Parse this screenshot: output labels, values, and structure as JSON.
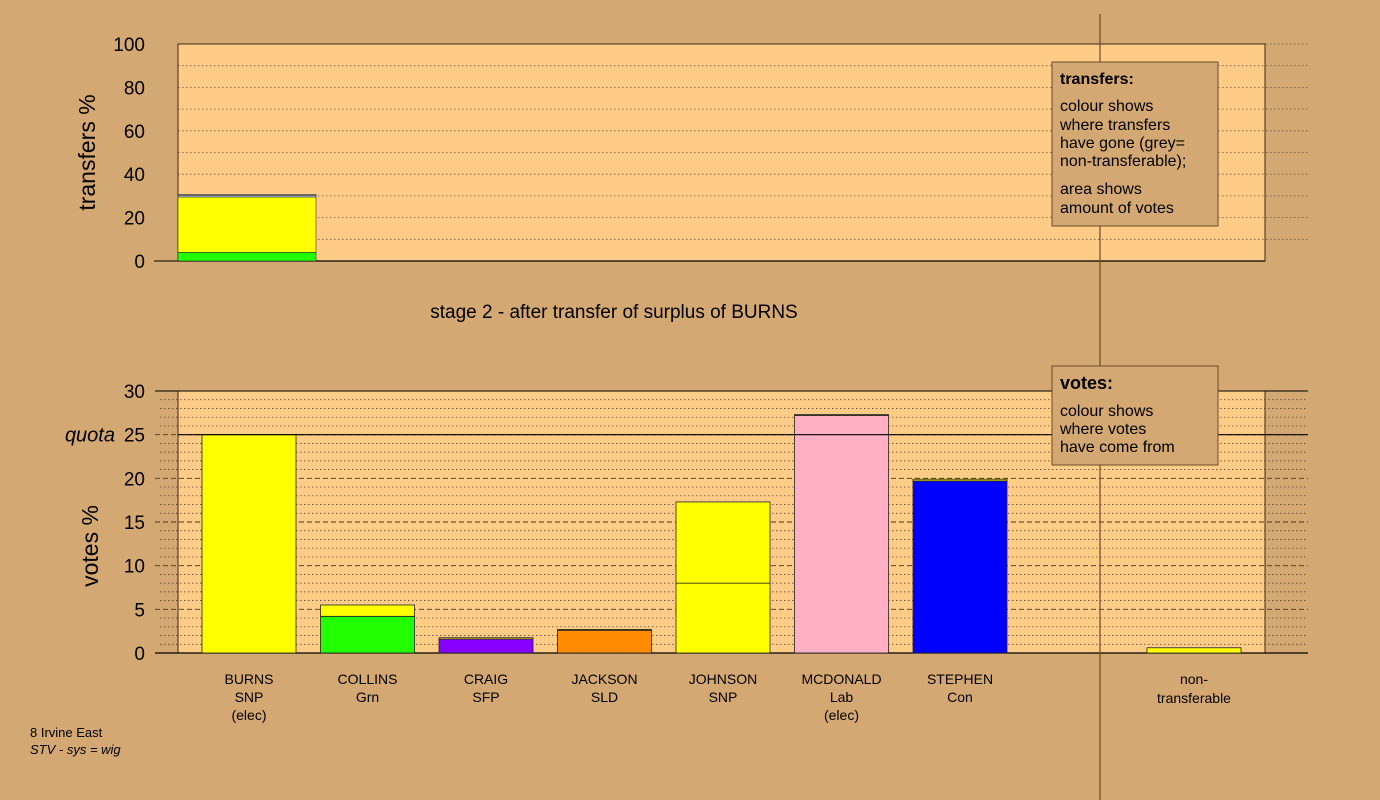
{
  "colors": {
    "page_bg": "#d4a872",
    "plot_bg": "#ffcc88",
    "yellow": "#ffff00",
    "green": "#22ff00",
    "purple": "#8800ff",
    "orange": "#ff8c00",
    "pink": "#ffb0c4",
    "blue": "#0000ff",
    "grey": "#b0b0b0",
    "lightblue": "#aaccff"
  },
  "chart_data": [
    {
      "type": "bar",
      "role": "transfers",
      "ylabel": "transfers %",
      "ylim": [
        0,
        100
      ],
      "yticks": [
        0,
        20,
        40,
        60,
        80,
        100
      ],
      "grid": "dotted every 10",
      "bars": [
        {
          "candidate": "BURNS",
          "segments": [
            {
              "color": "green",
              "value": 4
            },
            {
              "color": "yellow",
              "value": 25.5
            },
            {
              "color": "lightblue",
              "value": 0.6
            },
            {
              "color": "grey",
              "value": 0.6
            }
          ]
        }
      ],
      "legend": {
        "title": "transfers:",
        "lines_a": [
          "colour shows",
          "where transfers",
          "have gone (grey=",
          "non-transferable);"
        ],
        "lines_b": [
          "area shows",
          "amount of votes"
        ],
        "placement": "top-right"
      }
    },
    {
      "type": "bar",
      "role": "votes",
      "title": "stage 2 - after transfer of surplus of BURNS",
      "ylabel": "votes %",
      "ylim": [
        0,
        30
      ],
      "yticks": [
        0,
        5,
        10,
        15,
        20,
        25,
        30
      ],
      "quota": 25,
      "quota_label": "quota",
      "grid": "dashed every 5, dotted every 1",
      "categories": [
        {
          "name": "BURNS",
          "party": "SNP",
          "status": "(elec)",
          "segments": [
            {
              "color": "yellow",
              "value": 25
            }
          ]
        },
        {
          "name": "COLLINS",
          "party": "Grn",
          "status": "",
          "segments": [
            {
              "color": "green",
              "value": 4.2
            },
            {
              "color": "yellow",
              "value": 1.3
            }
          ]
        },
        {
          "name": "CRAIG",
          "party": "SFP",
          "status": "",
          "segments": [
            {
              "color": "purple",
              "value": 1.6
            },
            {
              "color": "yellow",
              "value": 0.15
            }
          ]
        },
        {
          "name": "JACKSON",
          "party": "SLD",
          "status": "",
          "segments": [
            {
              "color": "orange",
              "value": 2.6
            },
            {
              "color": "yellow",
              "value": 0.1
            }
          ]
        },
        {
          "name": "JOHNSON",
          "party": "SNP",
          "status": "",
          "segments": [
            {
              "color": "yellow",
              "value": 8
            },
            {
              "color": "yellow",
              "value": 9.3
            }
          ]
        },
        {
          "name": "MCDONALD",
          "party": "Lab",
          "status": "(elec)",
          "segments": [
            {
              "color": "pink",
              "value": 27.2
            },
            {
              "color": "yellow",
              "value": 0.1
            }
          ]
        },
        {
          "name": "STEPHEN",
          "party": "Con",
          "status": "",
          "segments": [
            {
              "color": "blue",
              "value": 19.7
            },
            {
              "color": "yellow",
              "value": 0.2
            }
          ]
        }
      ],
      "nontransferable": {
        "label": [
          "non-",
          "transferable"
        ],
        "value": 0.6,
        "color": "yellow"
      },
      "legend": {
        "title": "votes:",
        "lines": [
          "colour shows",
          "where votes",
          "have come from"
        ],
        "placement": "top-right"
      }
    }
  ],
  "footer": {
    "line1": "8 Irvine East",
    "line2": "STV - sys = wig"
  }
}
